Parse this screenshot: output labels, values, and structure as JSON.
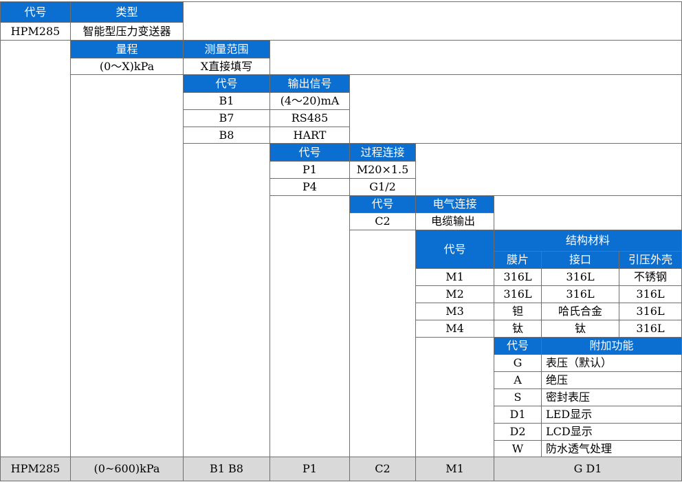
{
  "type_block": {
    "headers": [
      "代号",
      "类型"
    ],
    "row": [
      "HPM285",
      "智能型压力变送器"
    ]
  },
  "range_block": {
    "headers": [
      "量程",
      "测量范围"
    ],
    "row": [
      "(0～X)kPa",
      "X直接填写"
    ]
  },
  "signal_block": {
    "headers": [
      "代号",
      "输出信号"
    ],
    "rows": [
      [
        "B1",
        "(4～20)mA"
      ],
      [
        "B7",
        "RS485"
      ],
      [
        "B8",
        "HART"
      ]
    ]
  },
  "process_block": {
    "headers": [
      "代号",
      "过程连接"
    ],
    "rows": [
      [
        "P1",
        "M20×1.5"
      ],
      [
        "P4",
        "G1/2"
      ]
    ]
  },
  "electrical_block": {
    "headers": [
      "代号",
      "电气连接"
    ],
    "rows": [
      [
        "C2",
        "电缆输出"
      ]
    ]
  },
  "material_block": {
    "code_header": "代号",
    "group_header": "结构材料",
    "sub_headers": [
      "膜片",
      "接口",
      "引压外壳"
    ],
    "rows": [
      [
        "M1",
        "316L",
        "316L",
        "不锈钢"
      ],
      [
        "M2",
        "316L",
        "316L",
        "316L"
      ],
      [
        "M3",
        "钽",
        "哈氏合金",
        "316L"
      ],
      [
        "M4",
        "钛",
        "钛",
        "316L"
      ]
    ]
  },
  "function_block": {
    "headers": [
      "代号",
      "附加功能"
    ],
    "rows": [
      [
        "G",
        "表压（默认）"
      ],
      [
        "A",
        "绝压"
      ],
      [
        "S",
        "密封表压"
      ],
      [
        "D1",
        "LED显示"
      ],
      [
        "D2",
        "LCD显示"
      ],
      [
        "W",
        "防水透气处理"
      ]
    ]
  },
  "example_row": [
    "HPM285",
    "(0~600)kPa",
    "B1 B8",
    "P1",
    "C2",
    "M1",
    "G D1"
  ],
  "colors": {
    "header_bg": "#0a6fd1",
    "header_text": "#ffffff",
    "footer_bg": "#d9d9d9",
    "border": "#6e6e6e"
  }
}
